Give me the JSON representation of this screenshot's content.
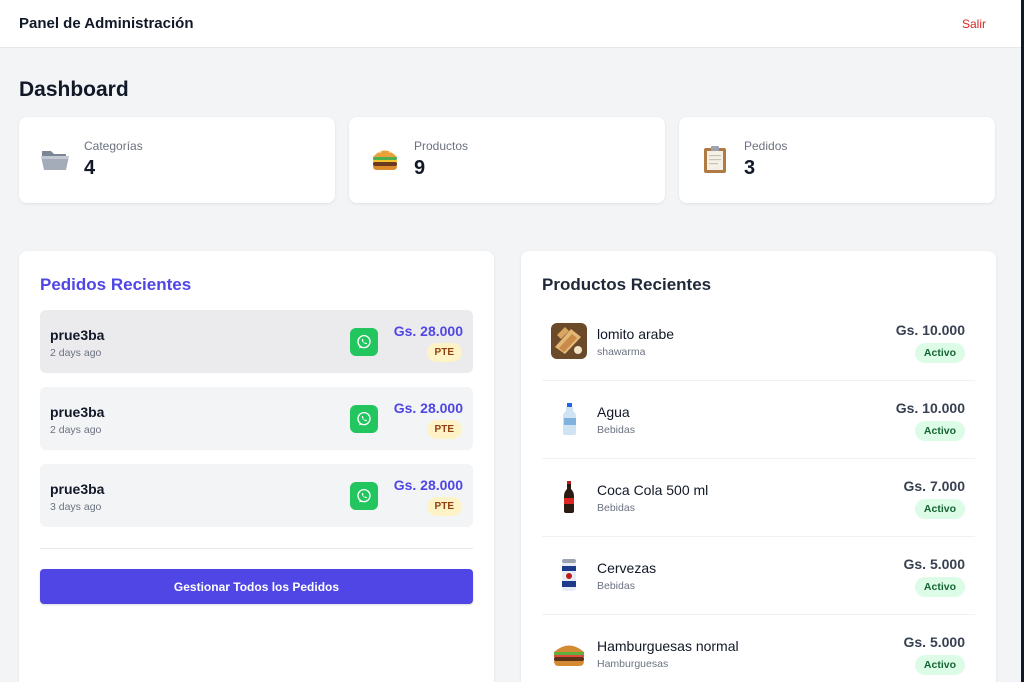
{
  "header": {
    "title": "Panel de Administración",
    "logout_label": "Salir"
  },
  "page_title": "Dashboard",
  "stats": [
    {
      "label": "Categorías",
      "value": "4",
      "icon": "folder-icon"
    },
    {
      "label": "Productos",
      "value": "9",
      "icon": "burger-icon"
    },
    {
      "label": "Pedidos",
      "value": "3",
      "icon": "clipboard-icon"
    }
  ],
  "recent_orders": {
    "title": "Pedidos Recientes",
    "orders": [
      {
        "name": "prue3ba",
        "time": "2 days ago",
        "total": "Gs. 28.000",
        "status": "PTE"
      },
      {
        "name": "prue3ba",
        "time": "2 days ago",
        "total": "Gs. 28.000",
        "status": "PTE"
      },
      {
        "name": "prue3ba",
        "time": "3 days ago",
        "total": "Gs. 28.000",
        "status": "PTE"
      }
    ],
    "manage_button": "Gestionar Todos los Pedidos"
  },
  "recent_products": {
    "title": "Productos Recientes",
    "products": [
      {
        "name": "lomito arabe",
        "category": "shawarma",
        "price": "Gs. 10.000",
        "status": "Activo",
        "icon": "shawarma-icon"
      },
      {
        "name": "Agua",
        "category": "Bebidas",
        "price": "Gs. 10.000",
        "status": "Activo",
        "icon": "water-bottle-icon"
      },
      {
        "name": "Coca Cola 500 ml",
        "category": "Bebidas",
        "price": "Gs. 7.000",
        "status": "Activo",
        "icon": "cola-bottle-icon"
      },
      {
        "name": "Cervezas",
        "category": "Bebidas",
        "price": "Gs. 5.000",
        "status": "Activo",
        "icon": "beer-can-icon"
      },
      {
        "name": "Hamburguesas normal",
        "category": "Hamburguesas",
        "price": "Gs. 5.000",
        "status": "Activo",
        "icon": "hamburger-icon"
      }
    ]
  },
  "colors": {
    "accent": "#4f46e5",
    "logout": "#dc2626",
    "whatsapp": "#22c55e",
    "pending_badge_bg": "#fef3c7",
    "active_badge_bg": "#dcfce7"
  }
}
